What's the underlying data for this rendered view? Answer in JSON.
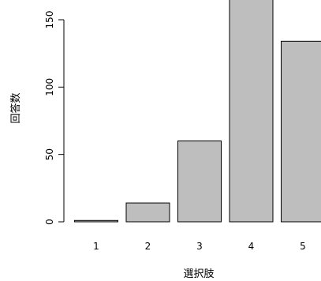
{
  "chart_data": {
    "type": "bar",
    "categories": [
      "1",
      "2",
      "3",
      "4",
      "5"
    ],
    "values": [
      1,
      14,
      60,
      170,
      134
    ],
    "xlabel": "選択肢",
    "ylabel": "回答数",
    "ylim": [
      0,
      150
    ],
    "yticks": [
      0,
      50,
      100,
      150
    ],
    "grid": false,
    "bar_color": "#bebebe",
    "bar_edge_color": "#000000"
  }
}
